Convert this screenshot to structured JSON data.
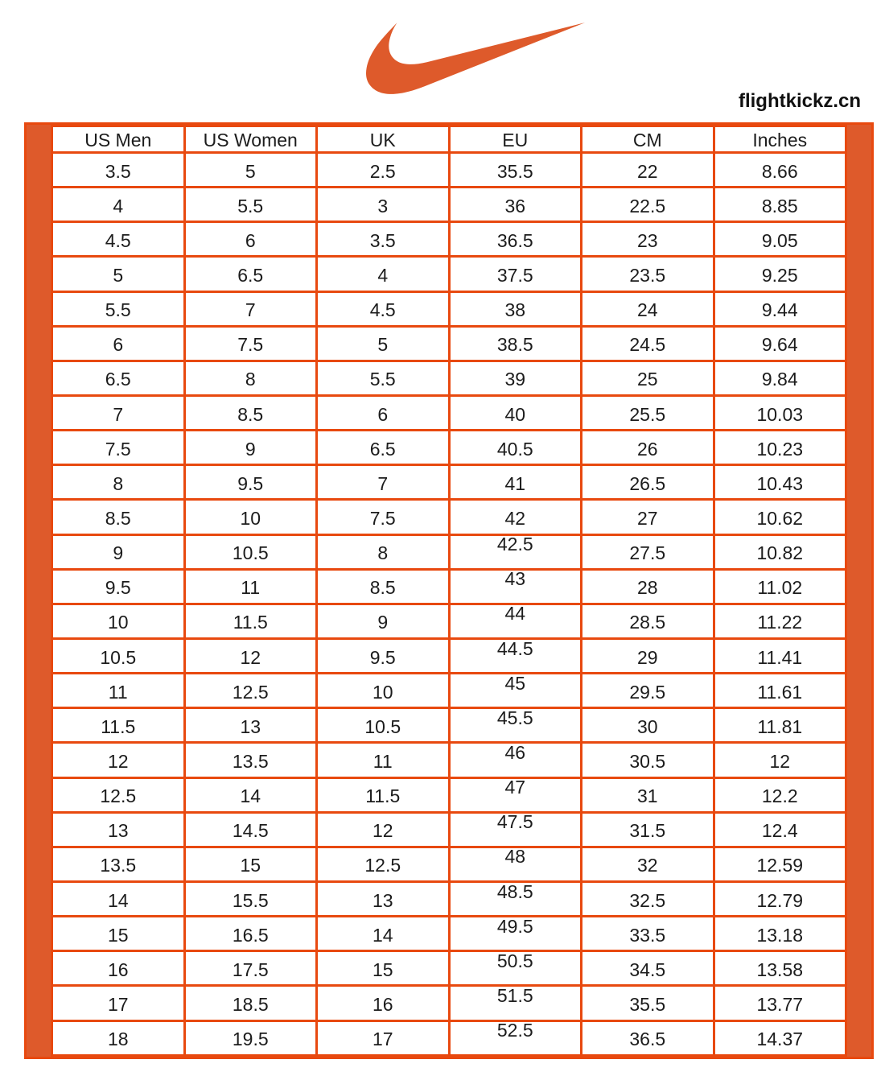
{
  "header": {
    "logo_icon": "nike-swoosh-icon",
    "site_name": "flightkickz.cn"
  },
  "colors": {
    "accent_fill": "#de5a2b",
    "grid_line": "#e8490f",
    "text": "#1c1c1c",
    "background": "#ffffff"
  },
  "chart_data": {
    "type": "table",
    "title": "Nike shoe size conversion chart",
    "columns": [
      "US Men",
      "US Women",
      "UK",
      "EU",
      "CM",
      "Inches"
    ],
    "rows": [
      [
        "3.5",
        "5",
        "2.5",
        "35.5",
        "22",
        "8.66"
      ],
      [
        "4",
        "5.5",
        "3",
        "36",
        "22.5",
        "8.85"
      ],
      [
        "4.5",
        "6",
        "3.5",
        "36.5",
        "23",
        "9.05"
      ],
      [
        "5",
        "6.5",
        "4",
        "37.5",
        "23.5",
        "9.25"
      ],
      [
        "5.5",
        "7",
        "4.5",
        "38",
        "24",
        "9.44"
      ],
      [
        "6",
        "7.5",
        "5",
        "38.5",
        "24.5",
        "9.64"
      ],
      [
        "6.5",
        "8",
        "5.5",
        "39",
        "25",
        "9.84"
      ],
      [
        "7",
        "8.5",
        "6",
        "40",
        "25.5",
        "10.03"
      ],
      [
        "7.5",
        "9",
        "6.5",
        "40.5",
        "26",
        "10.23"
      ],
      [
        "8",
        "9.5",
        "7",
        "41",
        "26.5",
        "10.43"
      ],
      [
        "8.5",
        "10",
        "7.5",
        "42",
        "27",
        "10.62"
      ],
      [
        "9",
        "10.5",
        "8",
        "42.5",
        "27.5",
        "10.82"
      ],
      [
        "9.5",
        "11",
        "8.5",
        "43",
        "28",
        "11.02"
      ],
      [
        "10",
        "11.5",
        "9",
        "44",
        "28.5",
        "11.22"
      ],
      [
        "10.5",
        "12",
        "9.5",
        "44.5",
        "29",
        "11.41"
      ],
      [
        "11",
        "12.5",
        "10",
        "45",
        "29.5",
        "11.61"
      ],
      [
        "11.5",
        "13",
        "10.5",
        "45.5",
        "30",
        "11.81"
      ],
      [
        "12",
        "13.5",
        "11",
        "46",
        "30.5",
        "12"
      ],
      [
        "12.5",
        "14",
        "11.5",
        "47",
        "31",
        "12.2"
      ],
      [
        "13",
        "14.5",
        "12",
        "47.5",
        "31.5",
        "12.4"
      ],
      [
        "13.5",
        "15",
        "12.5",
        "48",
        "32",
        "12.59"
      ],
      [
        "14",
        "15.5",
        "13",
        "48.5",
        "32.5",
        "12.79"
      ],
      [
        "15",
        "16.5",
        "14",
        "49.5",
        "33.5",
        "13.18"
      ],
      [
        "16",
        "17.5",
        "15",
        "50.5",
        "34.5",
        "13.58"
      ],
      [
        "17",
        "18.5",
        "16",
        "51.5",
        "35.5",
        "13.77"
      ],
      [
        "18",
        "19.5",
        "17",
        "52.5",
        "36.5",
        "14.37"
      ]
    ],
    "eu_column_index": 3,
    "eu_raised_from_row": 12,
    "layout_hints": "grid on, orange side accent bars, header row at top"
  }
}
